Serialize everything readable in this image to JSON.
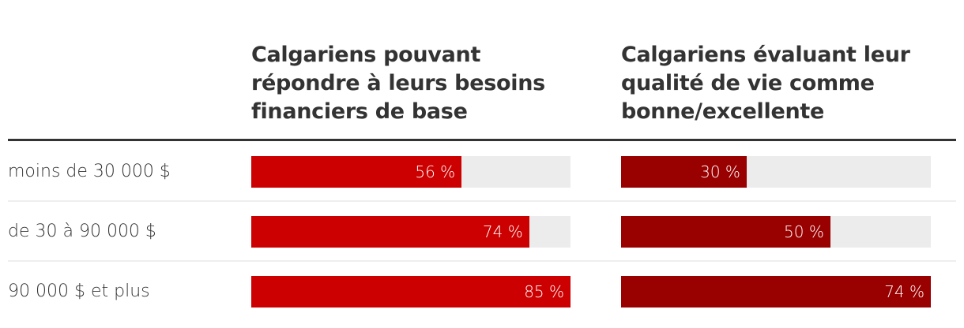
{
  "chart_data": {
    "type": "bar",
    "categories": [
      "moins de 30 000 $",
      "de 30 à 90 000 $",
      "90 000 $ et plus"
    ],
    "series": [
      {
        "name": "Calgariens pouvant répondre à leurs besoins financiers de base",
        "header_lines": [
          "Calgariens pouvant",
          "répondre à leurs besoins",
          "financiers de base"
        ],
        "values": [
          56,
          74,
          85
        ],
        "labels": [
          "56 %",
          "74 %",
          "85 %"
        ],
        "color": "#cc0000"
      },
      {
        "name": "Calgariens évaluant leur qualité de vie comme bonne/excellente",
        "header_lines": [
          "Calgariens évaluant leur",
          "qualité de vie comme",
          "bonne/excellente"
        ],
        "values": [
          30,
          50,
          74
        ],
        "labels": [
          "30 %",
          "50 %",
          "74 %"
        ],
        "color": "#990000"
      }
    ],
    "track_color": "#ececec",
    "unit": "%"
  }
}
